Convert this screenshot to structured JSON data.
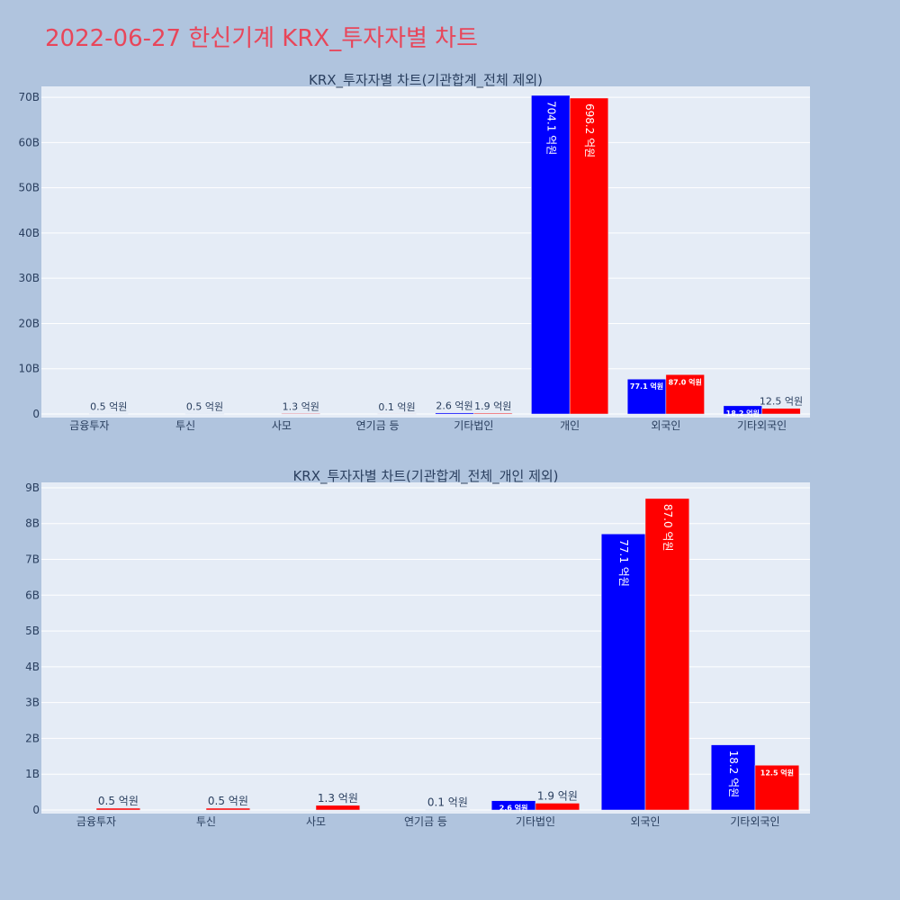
{
  "page": {
    "title": "2022-06-27 한신기계 KRX_투자자별 차트"
  },
  "colors": {
    "background": "#b0c4de",
    "plot_bg": "#e5ecf6",
    "title": "#e8465a",
    "series_blue": "#0000ff",
    "series_red": "#ff0000",
    "text": "#2a3f5f"
  },
  "chart_data": [
    {
      "type": "bar",
      "title": "KRX_투자자별 차트(기관합계_전체 제외)",
      "categories": [
        "금융투자",
        "투신",
        "사모",
        "연기금 등",
        "기타법인",
        "개인",
        "외국인",
        "기타외국인"
      ],
      "series": [
        {
          "color": "#0000ff",
          "values": [
            0,
            0,
            0,
            0,
            0.26,
            70.41,
            7.71,
            1.82
          ],
          "labels": [
            "",
            "",
            "",
            "",
            "2.6 억원",
            "704.1 억원",
            "77.1 억원",
            "18.2 억원"
          ]
        },
        {
          "color": "#ff0000",
          "values": [
            0.05,
            0.05,
            0.13,
            0.01,
            0.19,
            69.82,
            8.7,
            1.25
          ],
          "labels": [
            "0.5 억원",
            "0.5 억원",
            "1.3 억원",
            "0.1 억원",
            "1.9 억원",
            "698.2 억원",
            "87.0 억원",
            "12.5 억원"
          ]
        }
      ],
      "yticks": [
        "0",
        "10B",
        "20B",
        "30B",
        "40B",
        "50B",
        "60B",
        "70B"
      ],
      "ylim": [
        0,
        72.4
      ],
      "grid": true
    },
    {
      "type": "bar",
      "title": "KRX_투자자별 차트(기관합계_전체_개인 제외)",
      "categories": [
        "금융투자",
        "투신",
        "사모",
        "연기금 등",
        "기타법인",
        "외국인",
        "기타외국인"
      ],
      "series": [
        {
          "color": "#0000ff",
          "values": [
            0,
            0,
            0,
            0,
            0.26,
            7.71,
            1.82
          ],
          "labels": [
            "",
            "",
            "",
            "",
            "2.6 억원",
            "77.1 억원",
            "18.2 억원"
          ]
        },
        {
          "color": "#ff0000",
          "values": [
            0.05,
            0.05,
            0.13,
            0.01,
            0.19,
            8.7,
            1.25
          ],
          "labels": [
            "0.5 억원",
            "0.5 억원",
            "1.3 억원",
            "0.1 억원",
            "1.9 억원",
            "87.0 억원",
            "12.5 억원"
          ]
        }
      ],
      "yticks": [
        "0",
        "1B",
        "2B",
        "3B",
        "4B",
        "5B",
        "6B",
        "7B",
        "8B",
        "9B"
      ],
      "ylim": [
        0,
        9.15
      ],
      "grid": true
    }
  ]
}
